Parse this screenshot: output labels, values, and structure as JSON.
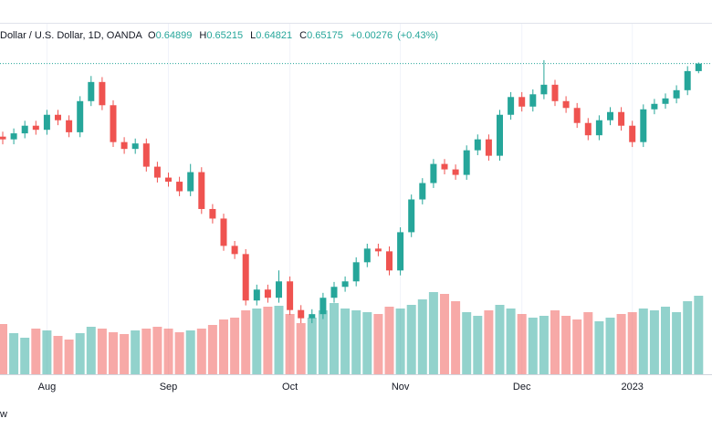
{
  "chart_data": {
    "type": "candlestick",
    "symbol": "Dollar / U.S. Dollar, 1D, OANDA",
    "ohlc_labels": [
      "O",
      "H",
      "L",
      "C"
    ],
    "change": "+0.00276",
    "change_pct": "(+0.43%)",
    "brand": "w",
    "up_color": "#26a69a",
    "down_color": "#ef5350",
    "categories": [
      null,
      null,
      null,
      null,
      "Aug",
      null,
      null,
      null,
      null,
      null,
      null,
      null,
      null,
      null,
      null,
      "Sep",
      null,
      null,
      null,
      null,
      null,
      null,
      null,
      null,
      null,
      null,
      "Oct",
      null,
      null,
      null,
      null,
      null,
      null,
      null,
      null,
      null,
      "Nov",
      null,
      null,
      null,
      null,
      null,
      null,
      null,
      null,
      null,
      null,
      "Dec",
      null,
      null,
      null,
      null,
      null,
      null,
      null,
      null,
      null,
      "2023",
      null,
      null,
      null,
      null,
      null,
      null
    ],
    "open": [
      0.625,
      0.624,
      0.6262,
      0.629,
      0.6275,
      0.633,
      0.631,
      0.6266,
      0.638,
      0.645,
      0.6365,
      0.623,
      0.6205,
      0.6225,
      0.614,
      0.61,
      0.6085,
      0.605,
      0.612,
      0.5985,
      0.595,
      0.585,
      0.582,
      0.565,
      0.569,
      0.566,
      0.572,
      0.5615,
      0.5585,
      0.56,
      0.566,
      0.57,
      0.572,
      0.579,
      0.584,
      0.583,
      0.576,
      0.59,
      0.602,
      0.608,
      0.615,
      0.613,
      0.611,
      0.62,
      0.624,
      0.618,
      0.633,
      0.6395,
      0.636,
      0.6405,
      0.644,
      0.638,
      0.6355,
      0.63,
      0.6255,
      0.631,
      0.634,
      0.629,
      0.623,
      0.635,
      0.637,
      0.639,
      0.642,
      0.64899
    ],
    "high": [
      0.6268,
      0.628,
      0.6308,
      0.6308,
      0.6348,
      0.6348,
      0.6328,
      0.6398,
      0.6472,
      0.6468,
      0.6383,
      0.6248,
      0.6243,
      0.6243,
      0.6158,
      0.6118,
      0.6103,
      0.615,
      0.6138,
      0.6003,
      0.5968,
      0.5868,
      0.5838,
      0.5708,
      0.5708,
      0.576,
      0.5738,
      0.5633,
      0.5618,
      0.5678,
      0.5718,
      0.5738,
      0.5808,
      0.5858,
      0.5858,
      0.5848,
      0.5918,
      0.6038,
      0.6098,
      0.6168,
      0.6168,
      0.6148,
      0.6218,
      0.6258,
      0.6258,
      0.6348,
      0.6413,
      0.6413,
      0.6423,
      0.653,
      0.6458,
      0.6398,
      0.6373,
      0.6318,
      0.6328,
      0.6358,
      0.6358,
      0.6308,
      0.6368,
      0.6388,
      0.6408,
      0.6438,
      0.6508,
      0.65215
    ],
    "low": [
      0.6222,
      0.6222,
      0.6244,
      0.6257,
      0.6257,
      0.6292,
      0.6248,
      0.6248,
      0.6362,
      0.6347,
      0.6212,
      0.6187,
      0.6187,
      0.6122,
      0.6082,
      0.6067,
      0.6032,
      0.6032,
      0.5967,
      0.5932,
      0.5832,
      0.5802,
      0.5632,
      0.5632,
      0.5642,
      0.5642,
      0.5597,
      0.5567,
      0.5567,
      0.5582,
      0.5642,
      0.5682,
      0.5702,
      0.5772,
      0.5812,
      0.5742,
      0.5742,
      0.5882,
      0.6002,
      0.6062,
      0.6112,
      0.6092,
      0.6092,
      0.6182,
      0.6162,
      0.6162,
      0.6312,
      0.6342,
      0.6342,
      0.6387,
      0.6362,
      0.6337,
      0.6282,
      0.6237,
      0.6237,
      0.6292,
      0.6272,
      0.6212,
      0.6212,
      0.6332,
      0.6352,
      0.6372,
      0.6402,
      0.64821
    ],
    "close": [
      0.624,
      0.6262,
      0.629,
      0.6275,
      0.633,
      0.631,
      0.6266,
      0.638,
      0.645,
      0.6365,
      0.623,
      0.6205,
      0.6225,
      0.614,
      0.61,
      0.6085,
      0.605,
      0.612,
      0.5985,
      0.595,
      0.585,
      0.582,
      0.565,
      0.569,
      0.566,
      0.572,
      0.5615,
      0.5585,
      0.56,
      0.566,
      0.57,
      0.572,
      0.579,
      0.584,
      0.583,
      0.576,
      0.59,
      0.602,
      0.608,
      0.615,
      0.613,
      0.611,
      0.62,
      0.624,
      0.618,
      0.633,
      0.6395,
      0.636,
      0.6405,
      0.644,
      0.638,
      0.6355,
      0.63,
      0.6255,
      0.631,
      0.634,
      0.629,
      0.623,
      0.635,
      0.637,
      0.639,
      0.642,
      0.649,
      0.65175
    ],
    "volume": [
      55,
      45,
      40,
      50,
      48,
      42,
      38,
      45,
      52,
      50,
      46,
      44,
      48,
      50,
      52,
      50,
      46,
      48,
      50,
      54,
      60,
      62,
      70,
      72,
      74,
      75,
      66,
      56,
      62,
      70,
      78,
      72,
      70,
      68,
      66,
      74,
      72,
      76,
      82,
      90,
      88,
      80,
      68,
      64,
      70,
      76,
      72,
      66,
      62,
      64,
      70,
      64,
      60,
      68,
      58,
      62,
      66,
      68,
      72,
      70,
      74,
      68,
      80,
      86
    ],
    "ylim": [
      0.538,
      0.665
    ],
    "volume_ylim": [
      0,
      100
    ]
  }
}
